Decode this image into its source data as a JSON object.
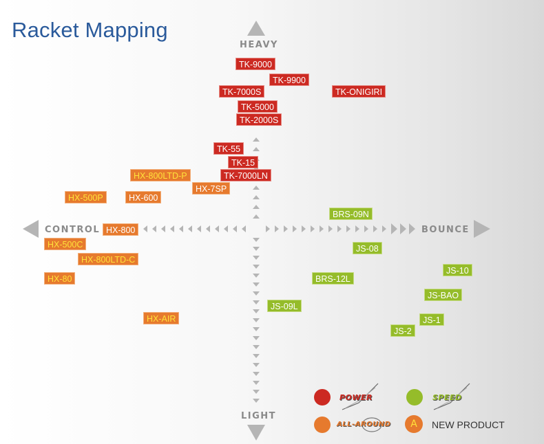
{
  "title": "Racket Mapping",
  "axes": {
    "top": "HEAVY",
    "bottom": "LIGHT",
    "left": "CONTROL",
    "right": "BOUNCE"
  },
  "colors": {
    "power": "#cc2a22",
    "allround": "#e67a2e",
    "speed": "#95bc2a",
    "title": "#2a5a9b",
    "arrow": "#b5b5b5"
  },
  "rackets": [
    {
      "label": "TK-9000",
      "series": "power"
    },
    {
      "label": "TK-9900",
      "series": "power"
    },
    {
      "label": "TK-7000S",
      "series": "power"
    },
    {
      "label": "TK-ONIGIRI",
      "series": "power"
    },
    {
      "label": "TK-5000",
      "series": "power"
    },
    {
      "label": "TK-2000S",
      "series": "power"
    },
    {
      "label": "TK-55",
      "series": "power"
    },
    {
      "label": "TK-15",
      "series": "power"
    },
    {
      "label": "TK-7000LN",
      "series": "power"
    },
    {
      "label": "HX-800LTD-P",
      "series": "allround",
      "new": true
    },
    {
      "label": "HX-7SP",
      "series": "allround"
    },
    {
      "label": "HX-500P",
      "series": "allround",
      "new": true
    },
    {
      "label": "HX-600",
      "series": "allround"
    },
    {
      "label": "HX-800",
      "series": "allround"
    },
    {
      "label": "HX-500C",
      "series": "allround",
      "new": true
    },
    {
      "label": "HX-800LTD-C",
      "series": "allround",
      "new": true
    },
    {
      "label": "HX-80",
      "series": "allround",
      "new": true
    },
    {
      "label": "HX-AIR",
      "series": "allround",
      "new": true
    },
    {
      "label": "BRS-09N",
      "series": "speed"
    },
    {
      "label": "JS-08",
      "series": "speed"
    },
    {
      "label": "BRS-12L",
      "series": "speed"
    },
    {
      "label": "JS-10",
      "series": "speed"
    },
    {
      "label": "JS-BAO",
      "series": "speed"
    },
    {
      "label": "JS-09L",
      "series": "speed"
    },
    {
      "label": "JS-1",
      "series": "speed"
    },
    {
      "label": "JS-2",
      "series": "speed"
    }
  ],
  "legend": {
    "power": "POWER",
    "speed": "SPEED",
    "allround": "ALL-AROUND",
    "new_marker": "A",
    "new_label": "NEW PRODUCT"
  }
}
